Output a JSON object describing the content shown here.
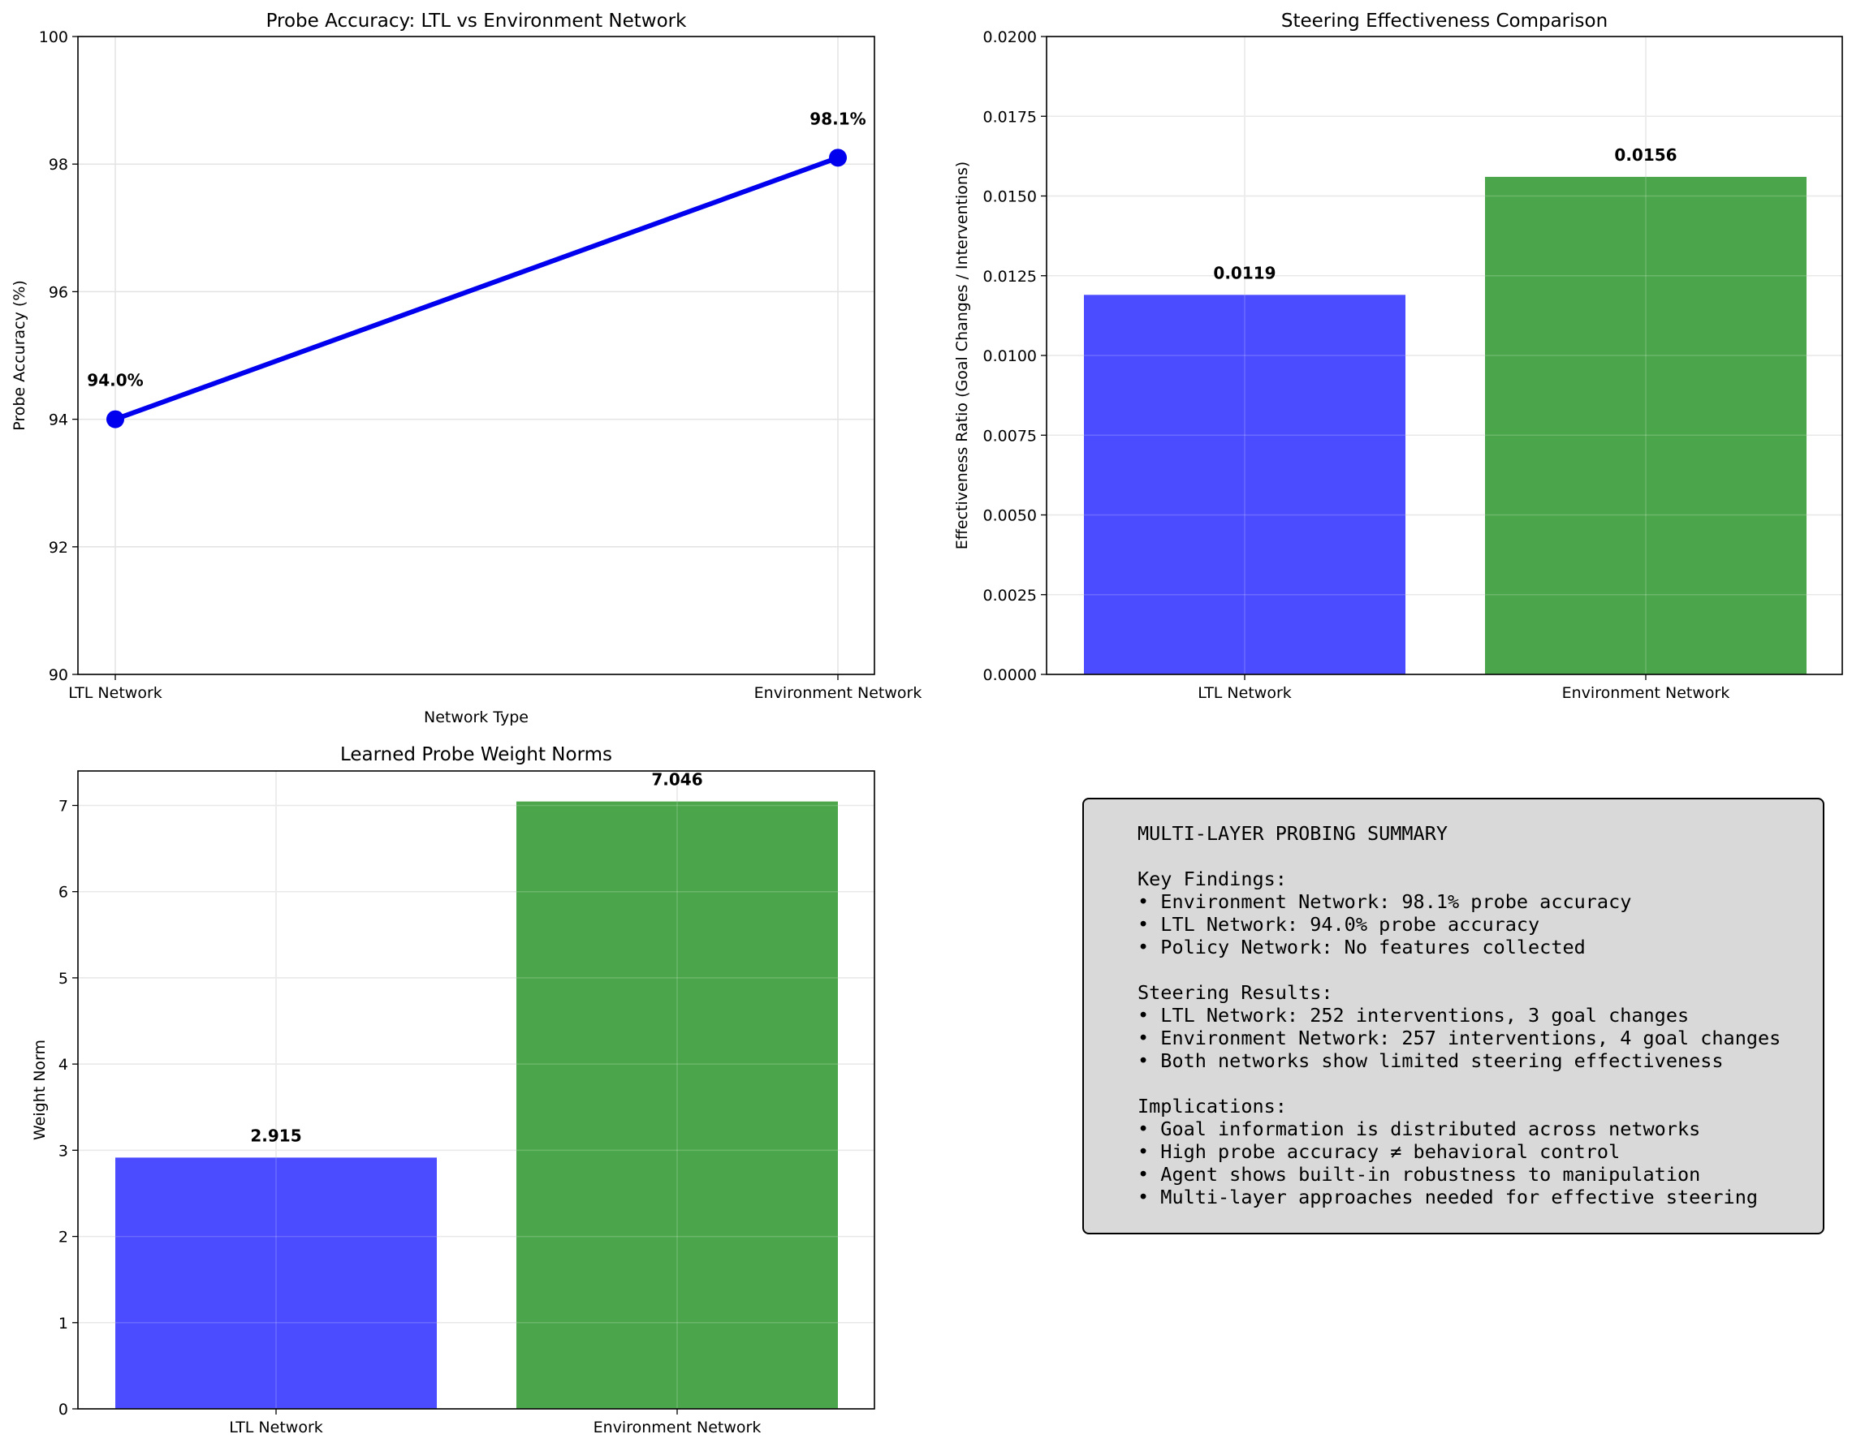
{
  "chart_data": [
    {
      "type": "line",
      "title": "Probe Accuracy: LTL vs Environment Network",
      "xlabel": "Network Type",
      "ylabel": "Probe Accuracy (%)",
      "categories": [
        "LTL Network",
        "Environment Network"
      ],
      "values": [
        94.0,
        98.1
      ],
      "data_labels": [
        "94.0%",
        "98.1%"
      ],
      "ylim": [
        90,
        100
      ],
      "yticks": [
        90,
        92,
        94,
        96,
        98,
        100
      ],
      "ytick_labels": [
        "90",
        "92",
        "94",
        "96",
        "98",
        "100"
      ],
      "grid": true,
      "color": "#0000ee"
    },
    {
      "type": "bar",
      "title": "Steering Effectiveness Comparison",
      "xlabel": "",
      "ylabel": "Effectiveness Ratio (Goal Changes / Interventions)",
      "categories": [
        "LTL Network",
        "Environment Network"
      ],
      "values": [
        0.0119,
        0.0156
      ],
      "data_labels": [
        "0.0119",
        "0.0156"
      ],
      "colors": [
        "#4b4bff",
        "#4ba64b"
      ],
      "ylim": [
        0,
        0.02
      ],
      "yticks": [
        0,
        0.0025,
        0.005,
        0.0075,
        0.01,
        0.0125,
        0.015,
        0.0175,
        0.02
      ],
      "ytick_labels": [
        "0.0000",
        "0.0025",
        "0.0050",
        "0.0075",
        "0.0100",
        "0.0125",
        "0.0150",
        "0.0175",
        "0.0200"
      ],
      "grid": true
    },
    {
      "type": "bar",
      "title": "Learned Probe Weight Norms",
      "xlabel": "",
      "ylabel": "Weight Norm",
      "categories": [
        "LTL Network",
        "Environment Network"
      ],
      "values": [
        2.915,
        7.046
      ],
      "data_labels": [
        "2.915",
        "7.046"
      ],
      "colors": [
        "#4b4bff",
        "#4ba64b"
      ],
      "ylim": [
        0,
        7.4
      ],
      "yticks": [
        0,
        1,
        2,
        3,
        4,
        5,
        6,
        7
      ],
      "ytick_labels": [
        "0",
        "1",
        "2",
        "3",
        "4",
        "5",
        "6",
        "7"
      ],
      "grid": true
    }
  ],
  "summary": {
    "lines": [
      "MULTI-LAYER PROBING SUMMARY",
      "",
      "Key Findings:",
      "• Environment Network: 98.1% probe accuracy",
      "• LTL Network: 94.0% probe accuracy",
      "• Policy Network: No features collected",
      "",
      "Steering Results:",
      "• LTL Network: 252 interventions, 3 goal changes",
      "• Environment Network: 257 interventions, 4 goal changes",
      "• Both networks show limited steering effectiveness",
      "",
      "Implications:",
      "• Goal information is distributed across networks",
      "• High probe accuracy ≠ behavioral control",
      "• Agent shows built-in robustness to manipulation",
      "• Multi-layer approaches needed for effective steering"
    ],
    "box_color": "#d9d9d9"
  }
}
